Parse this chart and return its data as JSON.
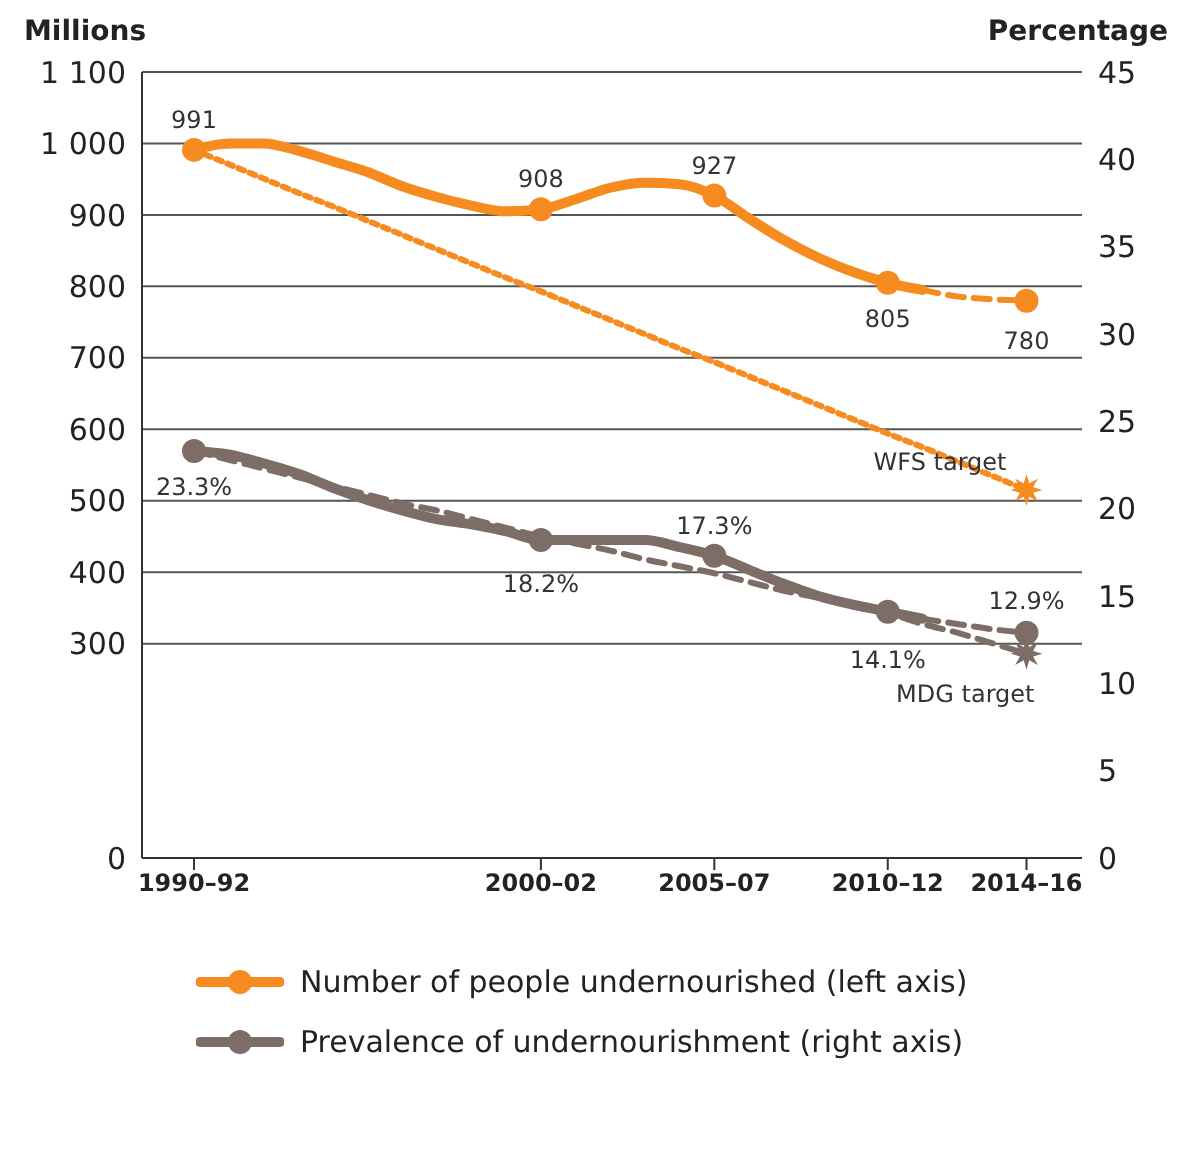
{
  "chart_data": {
    "type": "line",
    "ylabel": "Millions",
    "y2label": "Percentage",
    "categories": [
      "1990–92",
      null,
      null,
      null,
      null,
      null,
      null,
      null,
      null,
      null,
      "2000–02",
      null,
      null,
      null,
      null,
      "2005–07",
      null,
      null,
      null,
      null,
      "2010–12",
      null,
      null,
      null,
      "2014–16"
    ],
    "ylim": [
      0,
      1100
    ],
    "yticks": [
      0,
      300,
      400,
      500,
      600,
      700,
      800,
      900,
      {
        "value": 1000,
        "label": "1 000"
      },
      {
        "value": 1100,
        "label": "1 100"
      }
    ],
    "y2lim": [
      0,
      45
    ],
    "y2ticks": [
      0,
      5,
      10,
      15,
      20,
      25,
      30,
      35,
      40,
      45
    ],
    "grid": "y",
    "legend": "bottom",
    "series": [
      {
        "name": "Number of people undernourished (left axis)",
        "color": "#f68b1f",
        "marker": "none",
        "line_style": "solid",
        "values": [
          991,
          1000,
          1000,
          990,
          975,
          960,
          940,
          925,
          913,
          905,
          908,
          922,
          938,
          945,
          943,
          927,
          895,
          865,
          840,
          820,
          805,
          795,
          null,
          null,
          null
        ]
      },
      {
        "color": "#f68b1f",
        "marker": "none",
        "line_style": "dashed",
        "values": [
          null,
          null,
          null,
          null,
          null,
          null,
          null,
          null,
          null,
          null,
          null,
          null,
          null,
          null,
          null,
          null,
          null,
          null,
          null,
          null,
          null,
          795,
          786,
          782,
          780
        ]
      },
      {
        "type": "scatter",
        "color": "#f68b1f",
        "marker": "circle",
        "values": [
          991,
          null,
          null,
          null,
          null,
          null,
          null,
          null,
          null,
          null,
          908,
          null,
          null,
          null,
          null,
          927,
          null,
          null,
          null,
          null,
          805,
          null,
          null,
          null,
          780
        ],
        "value_labels": [
          "991",
          null,
          null,
          null,
          null,
          null,
          null,
          null,
          null,
          null,
          "908",
          null,
          null,
          null,
          null,
          "927",
          null,
          null,
          null,
          null,
          "805",
          null,
          null,
          null,
          "780"
        ]
      },
      {
        "color": "#f68b1f",
        "marker": "none",
        "line_style": "dotted",
        "values": [
          991,
          971,
          951,
          931,
          912,
          892,
          872,
          852,
          832,
          812,
          793,
          773,
          753,
          733,
          713,
          694,
          674,
          654,
          634,
          614,
          594,
          575,
          555,
          535,
          515
        ]
      },
      {
        "name": "WFS target",
        "type": "scatter",
        "color": "#f68b1f",
        "marker": "star",
        "values": [
          null,
          null,
          null,
          null,
          null,
          null,
          null,
          null,
          null,
          null,
          null,
          null,
          null,
          null,
          null,
          null,
          null,
          null,
          null,
          null,
          null,
          null,
          null,
          null,
          515
        ]
      },
      {
        "name": "Prevalence of undernourishment (right axis)",
        "axis": "y2",
        "color": "#7d6d66",
        "marker": "none",
        "line_style": "solid",
        "values": [
          23.3,
          23.1,
          22.6,
          22.0,
          21.2,
          20.5,
          19.9,
          19.4,
          19.1,
          18.7,
          18.2,
          18.2,
          18.2,
          18.2,
          17.8,
          17.3,
          16.5,
          15.7,
          15.0,
          14.5,
          14.1,
          13.7,
          null,
          null,
          null
        ]
      },
      {
        "axis": "y2",
        "color": "#7d6d66",
        "marker": "none",
        "line_style": "dashed",
        "values": [
          null,
          null,
          null,
          null,
          null,
          null,
          null,
          null,
          null,
          null,
          null,
          null,
          null,
          null,
          null,
          null,
          null,
          null,
          null,
          null,
          null,
          13.7,
          13.4,
          13.1,
          12.9
        ]
      },
      {
        "type": "scatter",
        "axis": "y2",
        "color": "#7d6d66",
        "marker": "circle",
        "values": [
          23.3,
          null,
          null,
          null,
          null,
          null,
          null,
          null,
          null,
          null,
          18.2,
          null,
          null,
          null,
          null,
          17.3,
          null,
          null,
          null,
          null,
          14.1,
          null,
          null,
          null,
          12.9
        ],
        "value_labels": [
          "23.3%",
          null,
          null,
          null,
          null,
          null,
          null,
          null,
          null,
          null,
          "18.2%",
          null,
          null,
          null,
          null,
          "17.3%",
          null,
          null,
          null,
          null,
          "14.1%",
          null,
          null,
          null,
          "12.9%"
        ]
      },
      {
        "axis": "y2",
        "color": "#7d6d66",
        "marker": "none",
        "line_style": "dashed",
        "values": [
          23.3,
          22.8,
          22.3,
          21.8,
          21.3,
          20.8,
          20.3,
          19.9,
          19.4,
          18.9,
          18.4,
          18.0,
          17.6,
          17.1,
          16.7,
          16.3,
          15.8,
          15.3,
          14.9,
          14.4,
          14.0,
          13.4,
          12.9,
          12.3,
          11.7
        ]
      },
      {
        "name": "MDG target",
        "type": "scatter",
        "axis": "y2",
        "color": "#7d6d66",
        "marker": "star",
        "values": [
          null,
          null,
          null,
          null,
          null,
          null,
          null,
          null,
          null,
          null,
          null,
          null,
          null,
          null,
          null,
          null,
          null,
          null,
          null,
          null,
          null,
          null,
          null,
          null,
          11.7
        ]
      }
    ]
  }
}
